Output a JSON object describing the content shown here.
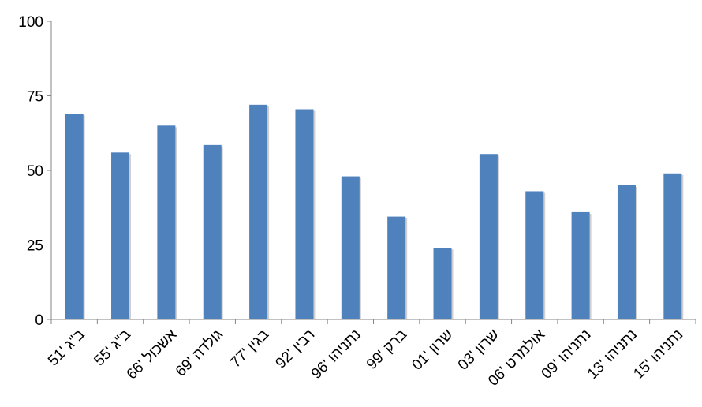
{
  "chart_data": {
    "type": "bar",
    "title": "",
    "xlabel": "",
    "ylabel": "",
    "ylim": [
      0,
      100
    ],
    "yticks": [
      0,
      25,
      50,
      75,
      100
    ],
    "grid": false,
    "bar_color": "#4F81BD",
    "categories": [
      "ב\"ג '51",
      "ב\"ג '55",
      "אשכול '66",
      "גולדה '69",
      "בגין '77",
      "רבין '92",
      "נתניהו '96",
      "ברק '99",
      "שרון '01",
      "שרון '03",
      "אולמרט '06",
      "נתניהו '09",
      "נתניהו '13",
      "נתניהו '15"
    ],
    "values": [
      69,
      56,
      65,
      58.5,
      72,
      70.5,
      48,
      34.5,
      24,
      55.5,
      43,
      36,
      45,
      49
    ]
  }
}
